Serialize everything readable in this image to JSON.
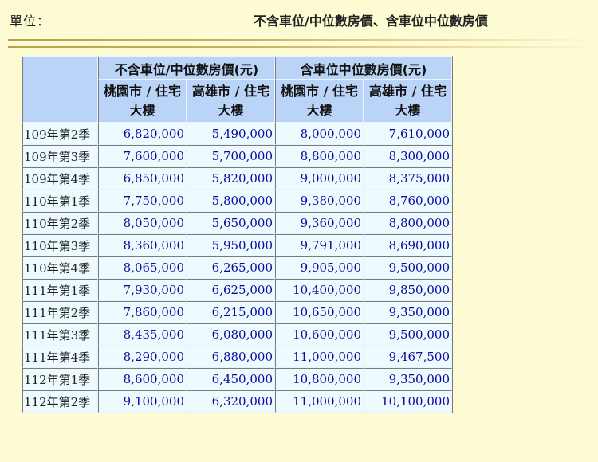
{
  "header": {
    "unit_label": "單位：",
    "title": "不含車位/中位數房價、含車位中位數房價"
  },
  "colors": {
    "background": "#fdfbd3",
    "header_cell": "#b9d4f6",
    "body_cell": "#edfbff",
    "value_text": "#0a0a9e",
    "rule": "#b9a14c"
  },
  "chart_data": {
    "type": "table",
    "column_groups": [
      "不含車位/中位數房價(元)",
      "含車位中位數房價(元)"
    ],
    "columns": [
      "桃園市 / 住宅大樓",
      "高雄市 / 住宅大樓",
      "桃園市 / 住宅大樓",
      "高雄市 / 住宅大樓"
    ],
    "rows": [
      {
        "period": "109年第2季",
        "values": [
          "6,820,000",
          "5,490,000",
          "8,000,000",
          "7,610,000"
        ]
      },
      {
        "period": "109年第3季",
        "values": [
          "7,600,000",
          "5,700,000",
          "8,800,000",
          "8,300,000"
        ]
      },
      {
        "period": "109年第4季",
        "values": [
          "6,850,000",
          "5,820,000",
          "9,000,000",
          "8,375,000"
        ]
      },
      {
        "period": "110年第1季",
        "values": [
          "7,750,000",
          "5,800,000",
          "9,380,000",
          "8,760,000"
        ]
      },
      {
        "period": "110年第2季",
        "values": [
          "8,050,000",
          "5,650,000",
          "9,360,000",
          "8,800,000"
        ]
      },
      {
        "period": "110年第3季",
        "values": [
          "8,360,000",
          "5,950,000",
          "9,791,000",
          "8,690,000"
        ]
      },
      {
        "period": "110年第4季",
        "values": [
          "8,065,000",
          "6,265,000",
          "9,905,000",
          "9,500,000"
        ]
      },
      {
        "period": "111年第1季",
        "values": [
          "7,930,000",
          "6,625,000",
          "10,400,000",
          "9,850,000"
        ]
      },
      {
        "period": "111年第2季",
        "values": [
          "7,860,000",
          "6,215,000",
          "10,650,000",
          "9,350,000"
        ]
      },
      {
        "period": "111年第3季",
        "values": [
          "8,435,000",
          "6,080,000",
          "10,600,000",
          "9,500,000"
        ]
      },
      {
        "period": "111年第4季",
        "values": [
          "8,290,000",
          "6,880,000",
          "11,000,000",
          "9,467,500"
        ]
      },
      {
        "period": "112年第1季",
        "values": [
          "8,600,000",
          "6,450,000",
          "10,800,000",
          "9,350,000"
        ]
      },
      {
        "period": "112年第2季",
        "values": [
          "9,100,000",
          "6,320,000",
          "11,000,000",
          "10,100,000"
        ]
      }
    ]
  }
}
